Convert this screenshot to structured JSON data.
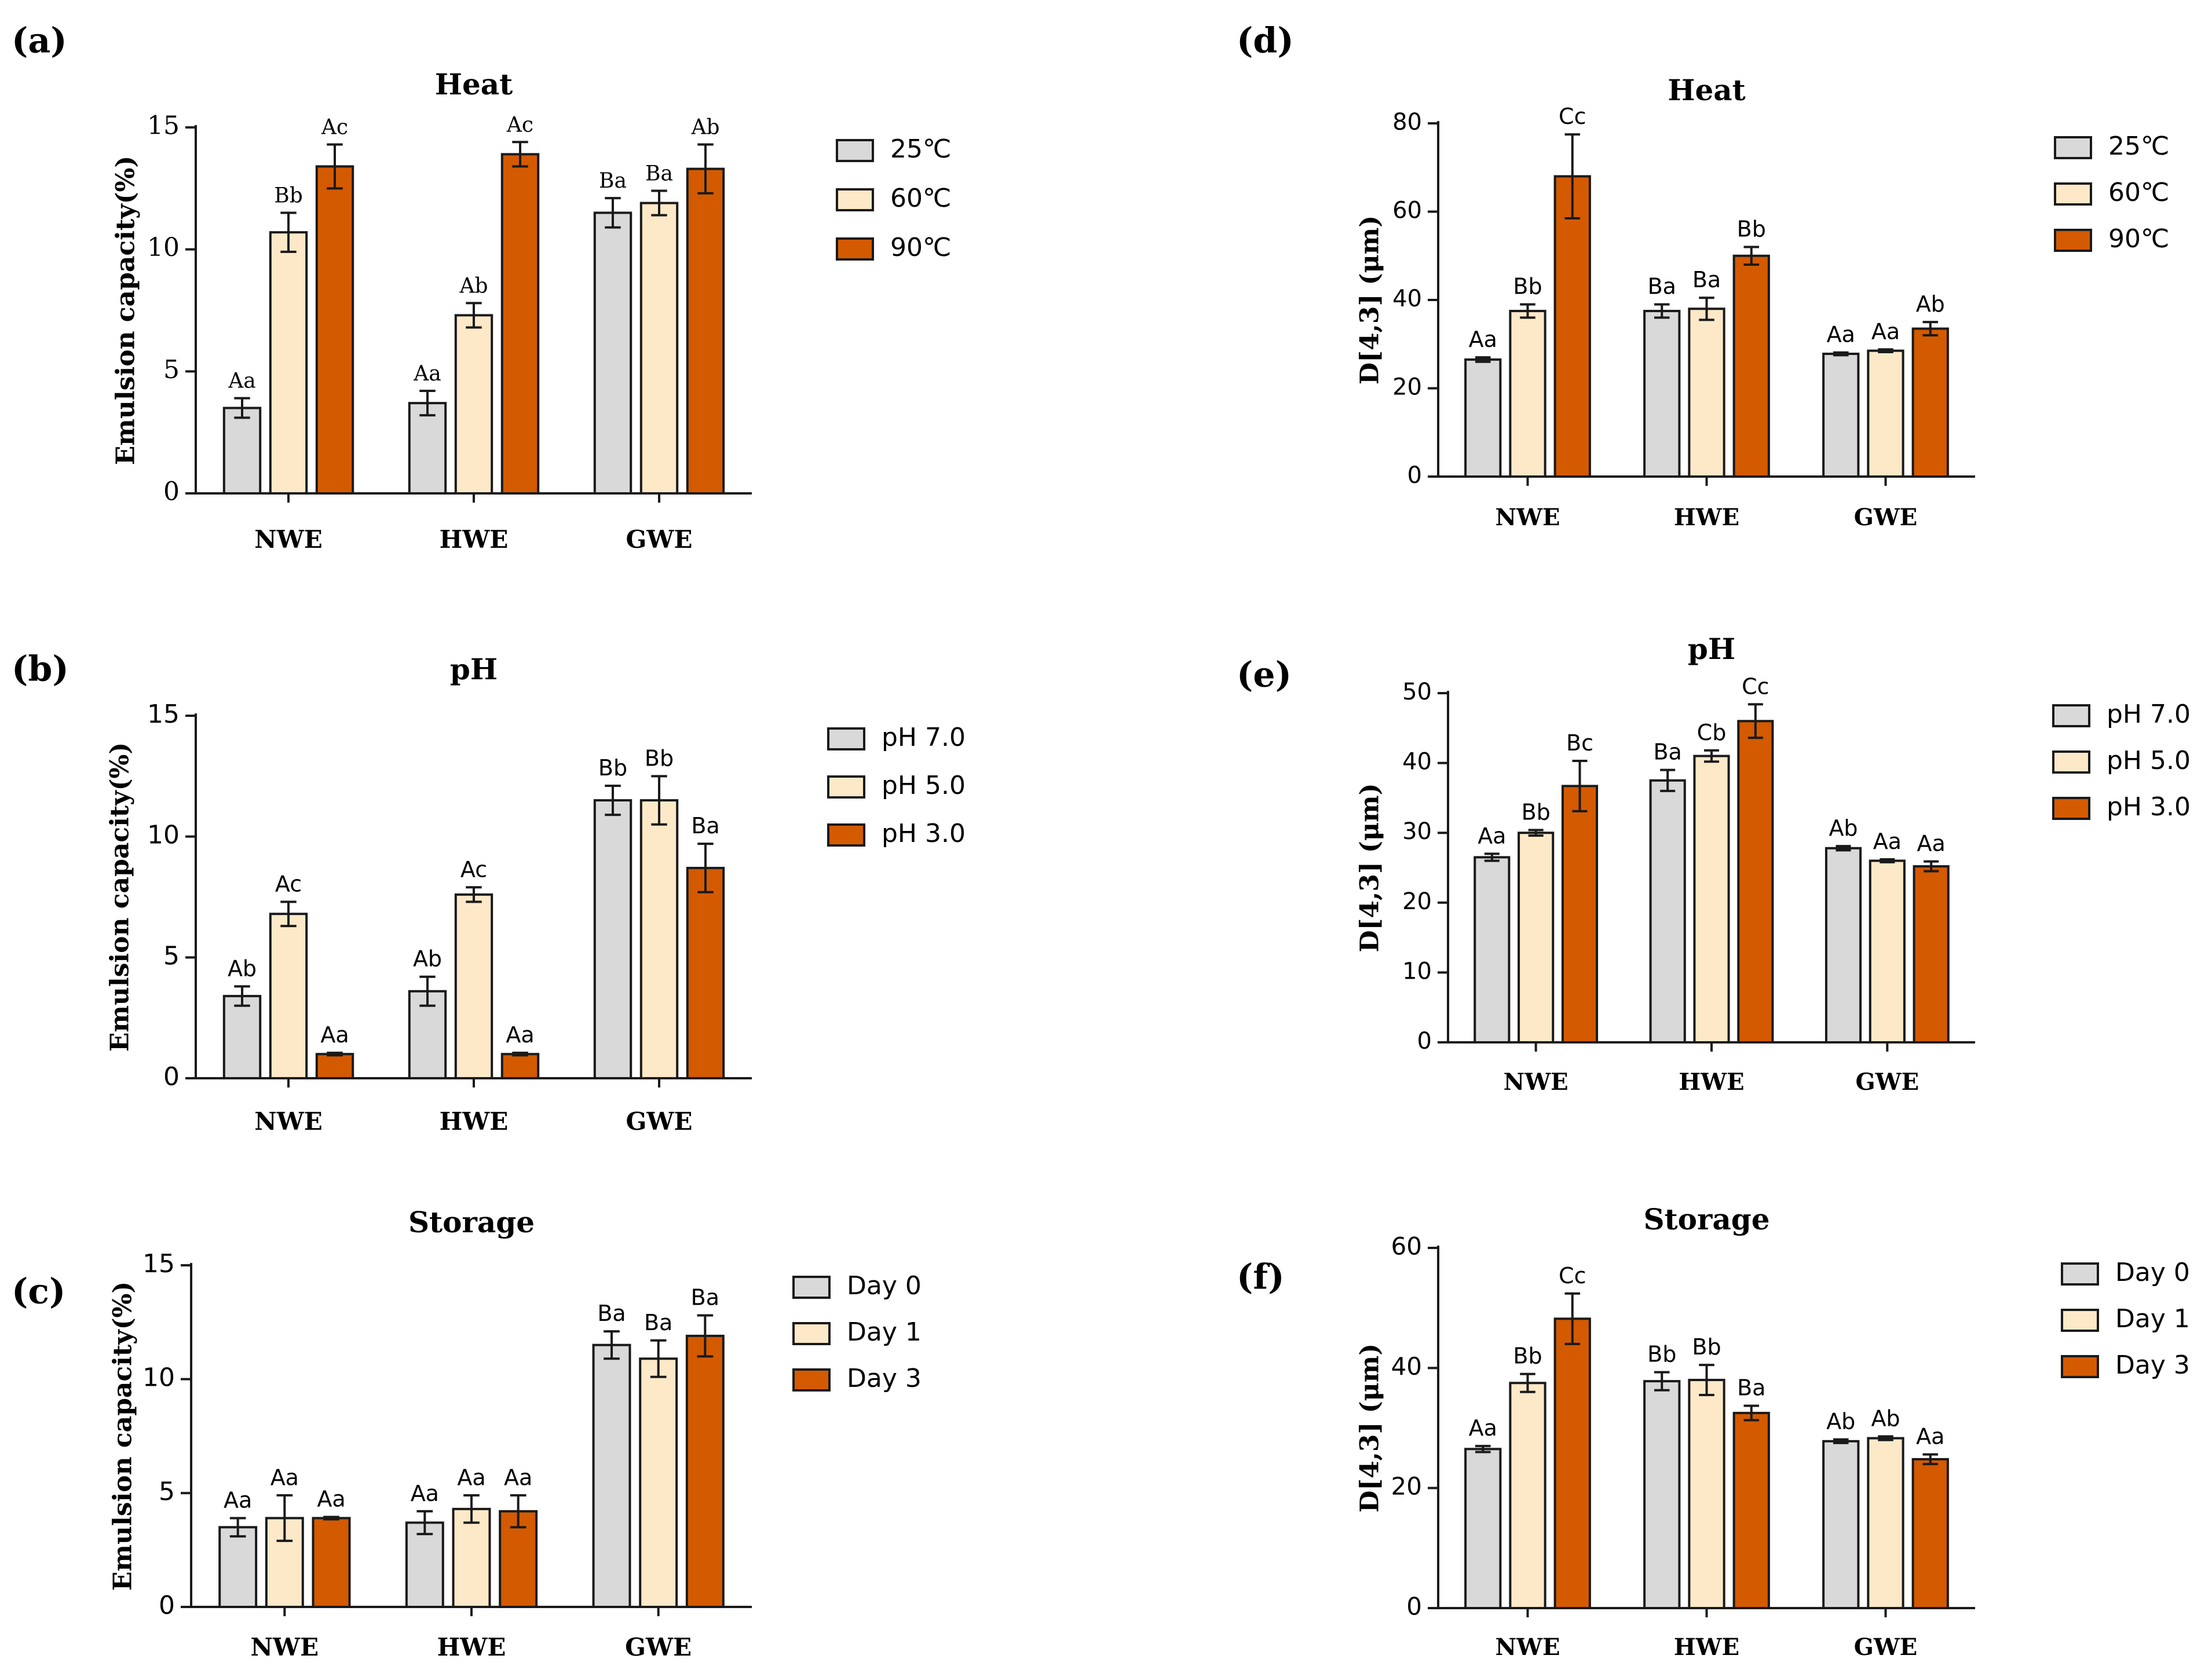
{
  "figure": {
    "colors": {
      "light": "#d9d9d9",
      "medium": "#fde9c8",
      "dark": "#d45a00",
      "stroke": "#1a1a1a"
    }
  },
  "chart_data": [
    {
      "panel_label": "(a)",
      "type": "bar",
      "title": "Heat",
      "xlabel": "",
      "ylabel": "Emulsion capacity(%)",
      "ylim": [
        0,
        15
      ],
      "yticks": [
        0,
        5,
        10,
        15
      ],
      "tick_labels": [
        "0",
        "5",
        "10",
        "15"
      ],
      "categories": [
        "NWE",
        "HWE",
        "GWE"
      ],
      "series": [
        {
          "name": "25℃",
          "values": [
            3.5,
            3.7,
            11.5
          ],
          "errors": [
            0.4,
            0.5,
            0.6
          ],
          "labels": [
            "Aa",
            "Aa",
            "Ba"
          ]
        },
        {
          "name": "60℃",
          "values": [
            10.7,
            7.3,
            11.9
          ],
          "errors": [
            0.8,
            0.5,
            0.5
          ],
          "labels": [
            "Bb",
            "Ab",
            "Ba"
          ]
        },
        {
          "name": "90℃",
          "values": [
            13.4,
            13.9,
            13.3
          ],
          "errors": [
            0.9,
            0.5,
            1.0
          ],
          "labels": [
            "Ac",
            "Ac",
            "Ab"
          ]
        }
      ],
      "legend_position": "right"
    },
    {
      "panel_label": "(b)",
      "type": "bar",
      "title": "pH",
      "xlabel": "",
      "ylabel": "Emulsion capacity(%)",
      "ylim": [
        0,
        15
      ],
      "yticks": [
        0,
        5,
        10,
        15
      ],
      "tick_labels": [
        "0",
        "5",
        "10",
        "15"
      ],
      "categories": [
        "NWE",
        "HWE",
        "GWE"
      ],
      "series": [
        {
          "name": "pH 7.0",
          "values": [
            3.4,
            3.6,
            11.5
          ],
          "errors": [
            0.4,
            0.6,
            0.6
          ],
          "labels": [
            "Ab",
            "Ab",
            "Bb"
          ]
        },
        {
          "name": "pH 5.0",
          "values": [
            6.8,
            7.6,
            11.5
          ],
          "errors": [
            0.5,
            0.3,
            1.0
          ],
          "labels": [
            "Ac",
            "Ac",
            "Bb"
          ]
        },
        {
          "name": "pH 3.0",
          "values": [
            1.0,
            1.0,
            8.7
          ],
          "errors": [
            0.05,
            0.05,
            1.0
          ],
          "labels": [
            "Aa",
            "Aa",
            "Ba"
          ]
        }
      ],
      "legend_position": "right"
    },
    {
      "panel_label": "(c)",
      "type": "bar",
      "title": "Storage",
      "xlabel": "",
      "ylabel": "Emulsion capacity(%)",
      "ylim": [
        0,
        15
      ],
      "yticks": [
        0,
        5,
        10,
        15
      ],
      "tick_labels": [
        "0",
        "5",
        "10",
        "15"
      ],
      "categories": [
        "NWE",
        "HWE",
        "GWE"
      ],
      "series": [
        {
          "name": "Day 0",
          "values": [
            3.5,
            3.7,
            11.5
          ],
          "errors": [
            0.4,
            0.5,
            0.6
          ],
          "labels": [
            "Aa",
            "Aa",
            "Ba"
          ]
        },
        {
          "name": "Day 1",
          "values": [
            3.9,
            4.3,
            10.9
          ],
          "errors": [
            1.0,
            0.6,
            0.8
          ],
          "labels": [
            "Aa",
            "Aa",
            "Ba"
          ]
        },
        {
          "name": "Day 3",
          "values": [
            3.9,
            4.2,
            11.9
          ],
          "errors": [
            0.05,
            0.7,
            0.9
          ],
          "labels": [
            "Aa",
            "Aa",
            "Ba"
          ]
        }
      ],
      "legend_position": "right"
    },
    {
      "panel_label": "(d)",
      "type": "bar",
      "title": "Heat",
      "xlabel": "",
      "ylabel": "D[4,3] (μm)",
      "ylim": [
        0,
        80
      ],
      "yticks": [
        0,
        20,
        40,
        60,
        80
      ],
      "tick_labels": [
        "0",
        "20",
        "40",
        "60",
        "80"
      ],
      "categories": [
        "NWE",
        "HWE",
        "GWE"
      ],
      "series": [
        {
          "name": "25℃",
          "values": [
            26.5,
            37.5,
            27.8
          ],
          "errors": [
            0.5,
            1.5,
            0.3
          ],
          "labels": [
            "Aa",
            "Ba",
            "Aa"
          ]
        },
        {
          "name": "60℃",
          "values": [
            37.5,
            38.0,
            28.5
          ],
          "errors": [
            1.5,
            2.5,
            0.3
          ],
          "labels": [
            "Bb",
            "Ba",
            "Aa"
          ]
        },
        {
          "name": "90℃",
          "values": [
            68.0,
            50.0,
            33.5
          ],
          "errors": [
            9.5,
            2.0,
            1.5
          ],
          "labels": [
            "Cc",
            "Bb",
            "Ab"
          ]
        }
      ],
      "legend_position": "right"
    },
    {
      "panel_label": "(e)",
      "type": "bar",
      "title": "pH",
      "xlabel": "",
      "ylabel": "D[4,3] (μm)",
      "ylim": [
        0,
        50
      ],
      "yticks": [
        0,
        10,
        20,
        30,
        40,
        50
      ],
      "tick_labels": [
        "0",
        "10",
        "20",
        "30",
        "40",
        "50"
      ],
      "categories": [
        "NWE",
        "HWE",
        "GWE"
      ],
      "series": [
        {
          "name": "pH 7.0",
          "values": [
            26.5,
            37.5,
            27.8
          ],
          "errors": [
            0.5,
            1.5,
            0.3
          ],
          "labels": [
            "Aa",
            "Ba",
            "Ab"
          ]
        },
        {
          "name": "pH 5.0",
          "values": [
            30.0,
            41.0,
            26.0
          ],
          "errors": [
            0.4,
            0.8,
            0.2
          ],
          "labels": [
            "Bb",
            "Cb",
            "Aa"
          ]
        },
        {
          "name": "pH 3.0",
          "values": [
            36.7,
            46.0,
            25.2
          ],
          "errors": [
            3.6,
            2.4,
            0.7
          ],
          "labels": [
            "Bc",
            "Cc",
            "Aa"
          ]
        }
      ],
      "legend_position": "right"
    },
    {
      "panel_label": "(f)",
      "type": "bar",
      "title": "Storage",
      "xlabel": "",
      "ylabel": "D[4,3] (μm)",
      "ylim": [
        0,
        60
      ],
      "yticks": [
        0,
        20,
        40,
        60
      ],
      "tick_labels": [
        "0",
        "20",
        "40",
        "60"
      ],
      "categories": [
        "NWE",
        "HWE",
        "GWE"
      ],
      "series": [
        {
          "name": "Day 0",
          "values": [
            26.5,
            37.8,
            27.8
          ],
          "errors": [
            0.5,
            1.5,
            0.3
          ],
          "labels": [
            "Aa",
            "Bb",
            "Ab"
          ]
        },
        {
          "name": "Day 1",
          "values": [
            37.5,
            38.0,
            28.3
          ],
          "errors": [
            1.5,
            2.5,
            0.3
          ],
          "labels": [
            "Bb",
            "Bb",
            "Ab"
          ]
        },
        {
          "name": "Day 3",
          "values": [
            48.2,
            32.5,
            24.8
          ],
          "errors": [
            4.2,
            1.2,
            0.8
          ],
          "labels": [
            "Cc",
            "Ba",
            "Aa"
          ]
        }
      ],
      "legend_position": "right"
    }
  ]
}
